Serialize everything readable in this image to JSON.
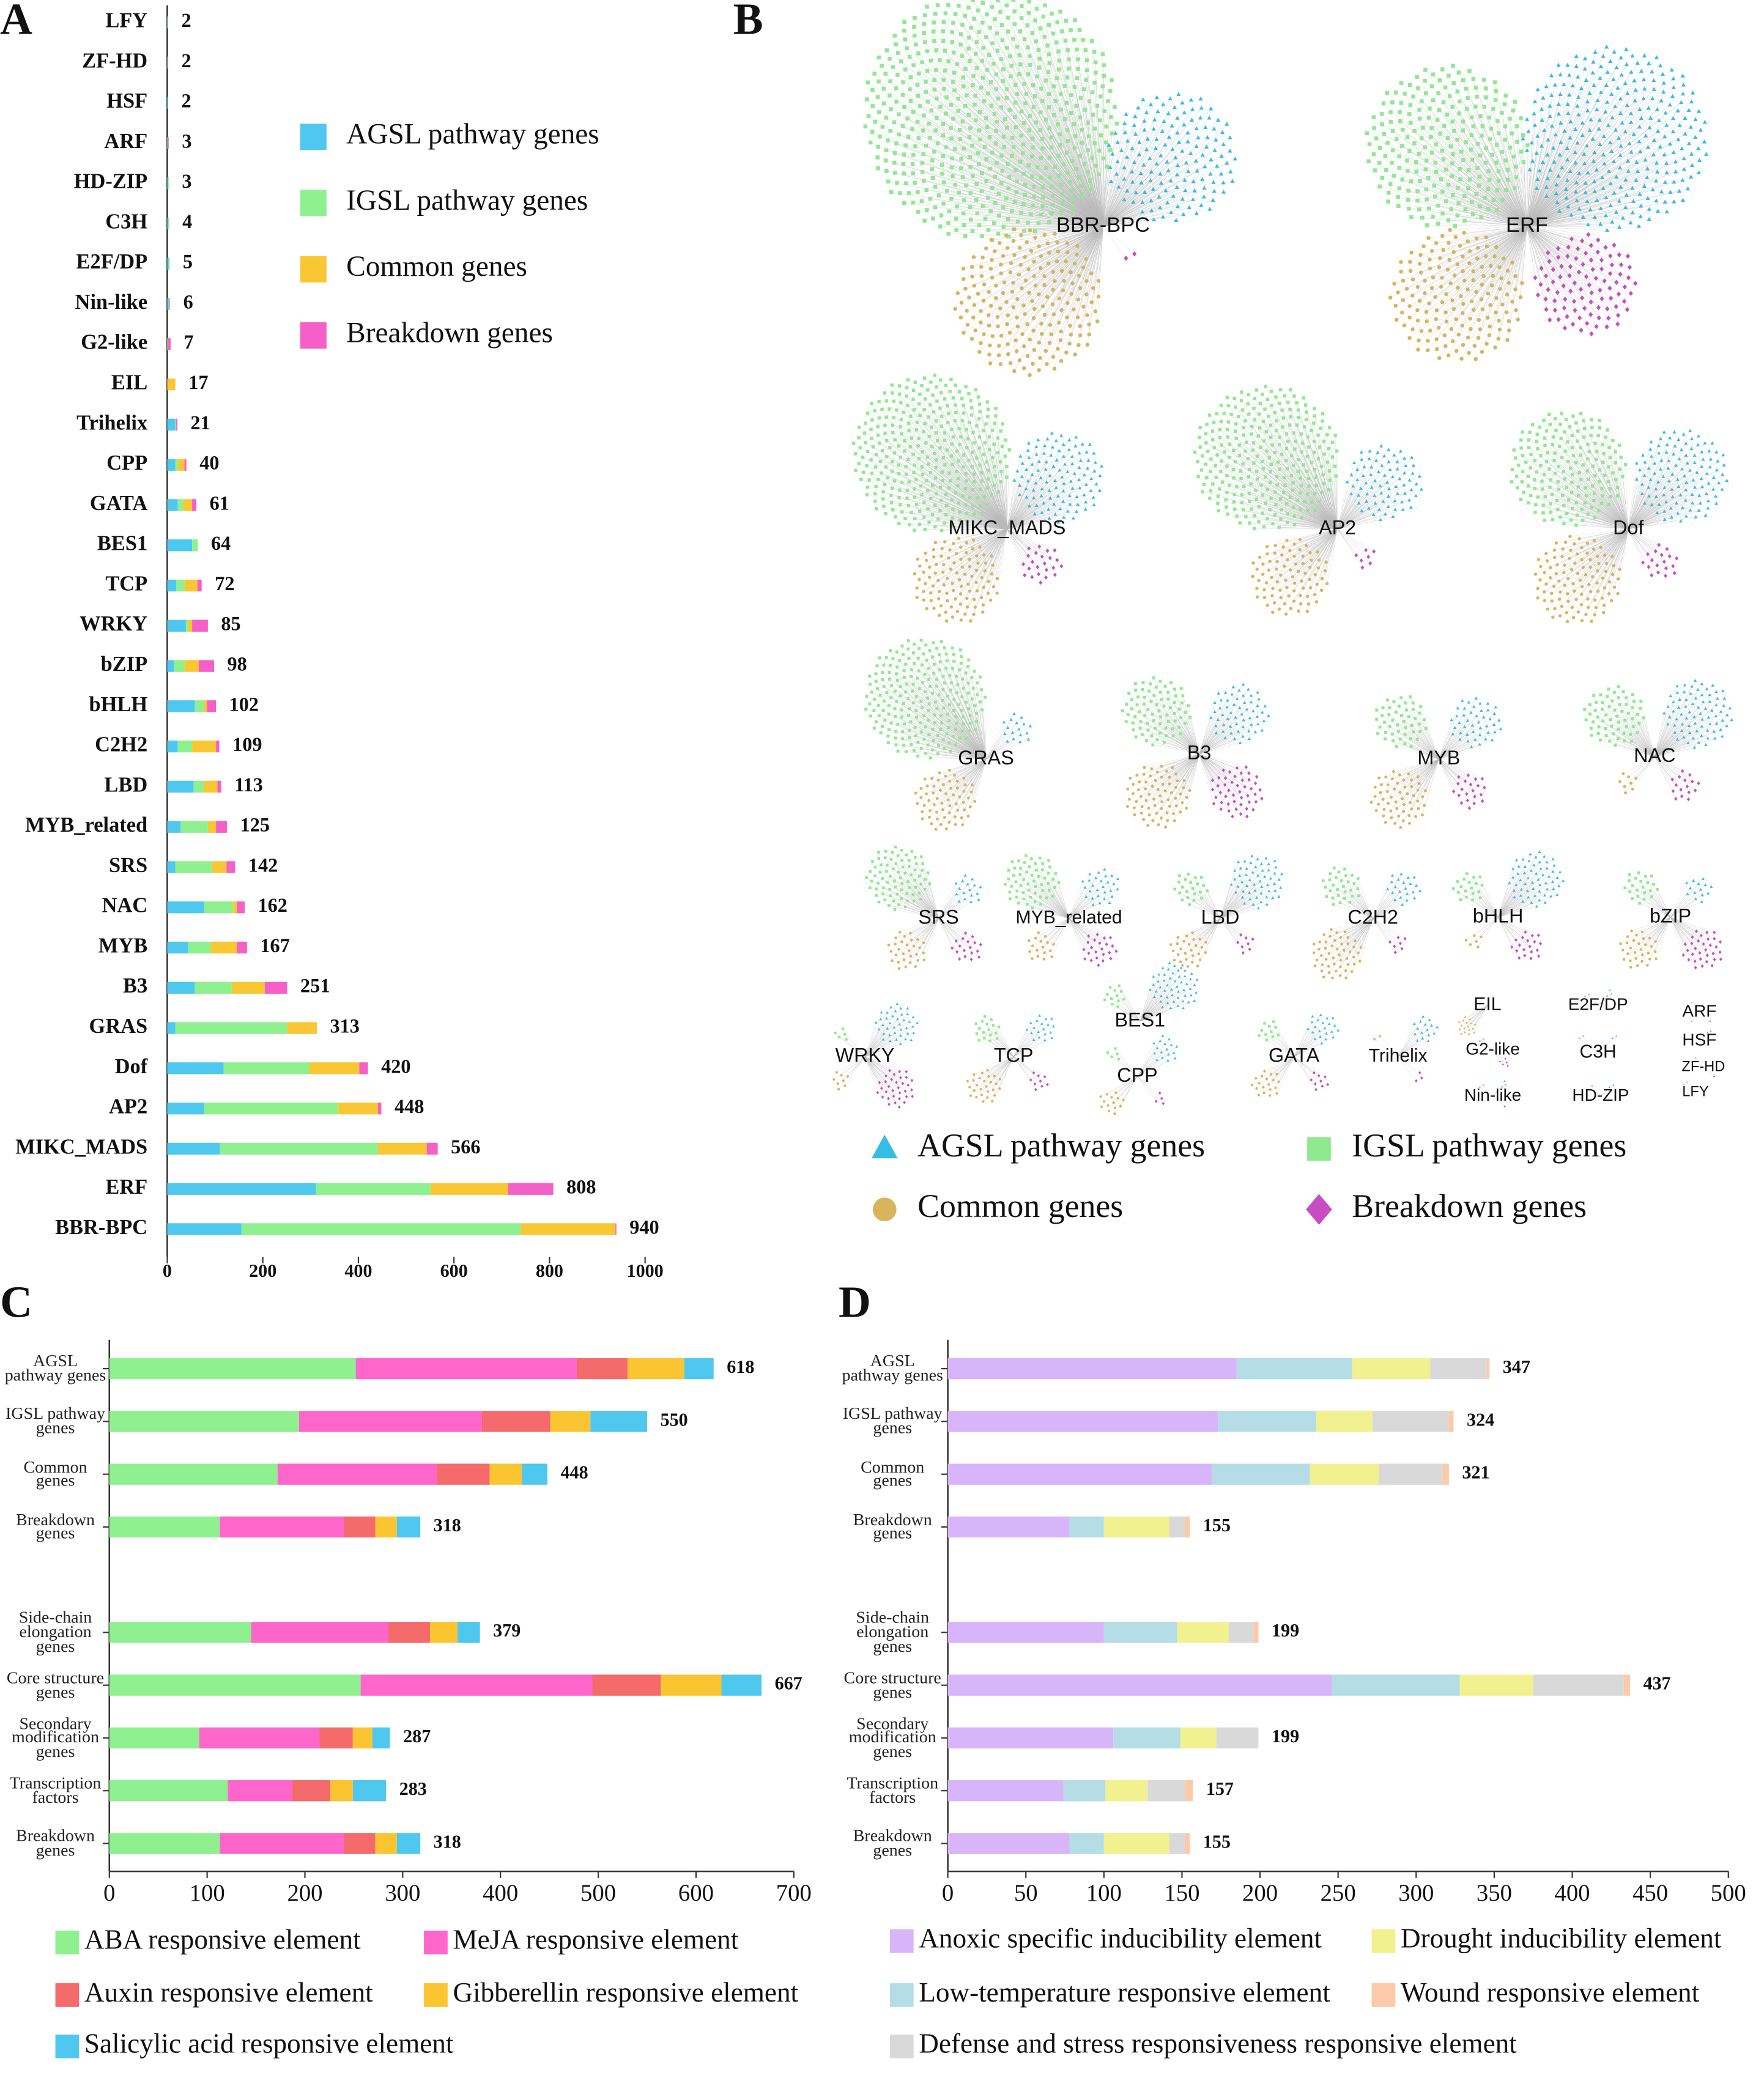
{
  "chart_data": [
    {
      "type": "bar",
      "panel_label": "A",
      "orientation": "horizontal",
      "stacked": true,
      "categories": [
        "LFY",
        "ZF-HD",
        "HSF",
        "ARF",
        "HD-ZIP",
        "C3H",
        "E2F/DP",
        "Nin-like",
        "G2-like",
        "EIL",
        "Trihelix",
        "CPP",
        "GATA",
        "BES1",
        "TCP",
        "WRKY",
        "bZIP",
        "bHLH",
        "C2H2",
        "LBD",
        "MYB_related",
        "SRS",
        "NAC",
        "MYB",
        "B3",
        "GRAS",
        "Dof",
        "AP2",
        "MIKC_MADS",
        "ERF",
        "BBR-BPC"
      ],
      "series": [
        {
          "name": "AGSL pathway genes",
          "color": "#4fc8f0",
          "values": [
            0,
            0,
            2,
            0,
            2,
            2,
            3,
            3,
            0,
            0,
            16,
            17,
            22,
            52,
            19,
            39,
            14,
            58,
            22,
            55,
            28,
            17,
            77,
            44,
            58,
            17,
            118,
            77,
            110,
            311,
            155
          ]
        },
        {
          "name": "IGSL pathway genes",
          "color": "#8ff08f",
          "values": [
            2,
            1,
            0,
            1,
            1,
            2,
            2,
            2,
            2,
            0,
            2,
            5,
            11,
            12,
            17,
            5,
            22,
            19,
            30,
            22,
            57,
            77,
            61,
            47,
            77,
            234,
            179,
            281,
            331,
            240,
            585
          ]
        },
        {
          "name": "Common genes",
          "color": "#fac734",
          "values": [
            0,
            0,
            0,
            1,
            0,
            0,
            0,
            0,
            0,
            17,
            0,
            14,
            19,
            0,
            27,
            8,
            30,
            6,
            50,
            28,
            17,
            30,
            8,
            55,
            69,
            62,
            105,
            83,
            102,
            162,
            198
          ]
        },
        {
          "name": "Breakdown genes",
          "color": "#f55fc8",
          "values": [
            0,
            1,
            0,
            1,
            0,
            0,
            0,
            1,
            5,
            0,
            3,
            4,
            9,
            0,
            9,
            33,
            32,
            19,
            7,
            8,
            23,
            18,
            16,
            21,
            47,
            0,
            18,
            7,
            23,
            95,
            2
          ]
        }
      ],
      "totals": [
        2,
        2,
        2,
        3,
        3,
        4,
        5,
        6,
        7,
        17,
        21,
        40,
        61,
        64,
        72,
        85,
        98,
        102,
        109,
        113,
        125,
        142,
        162,
        167,
        251,
        313,
        420,
        448,
        566,
        808,
        940
      ],
      "xlim": [
        0,
        1000
      ],
      "xticks": [
        0,
        200,
        400,
        600,
        800,
        1000
      ]
    },
    {
      "type": "bar",
      "panel_label": "C",
      "orientation": "horizontal",
      "stacked": true,
      "categories": [
        "AGSL pathway genes",
        "IGSL pathway genes",
        "Common genes",
        "Breakdown genes",
        "Side-chain elongation genes",
        "Core structure genes",
        "Secondary modification genes",
        "Transcription factors",
        "Breakdown genes"
      ],
      "series": [
        {
          "name": "ABA responsive element",
          "color": "#8ff08f",
          "values": [
            252,
            194,
            172,
            113,
            145,
            257,
            92,
            121,
            113
          ]
        },
        {
          "name": "MeJA responsive element",
          "color": "#ff66cc",
          "values": [
            226,
            187,
            163,
            127,
            140,
            237,
            123,
            66,
            127
          ]
        },
        {
          "name": "Auxin responsive element",
          "color": "#f56a6a",
          "values": [
            52,
            70,
            54,
            32,
            43,
            70,
            34,
            39,
            32
          ]
        },
        {
          "name": "Gibberellin responsive element",
          "color": "#fbc531",
          "values": [
            58,
            41,
            33,
            22,
            28,
            62,
            20,
            23,
            22
          ]
        },
        {
          "name": "Salicylic acid responsive element",
          "color": "#4fc8f0",
          "values": [
            30,
            58,
            26,
            24,
            23,
            41,
            18,
            34,
            24
          ]
        }
      ],
      "totals": [
        618,
        550,
        448,
        318,
        379,
        667,
        287,
        283,
        318
      ],
      "xlim": [
        0,
        700
      ],
      "xticks": [
        0,
        100,
        200,
        300,
        400,
        500,
        600,
        700
      ]
    },
    {
      "type": "bar",
      "panel_label": "D",
      "orientation": "horizontal",
      "stacked": true,
      "categories": [
        "AGSL pathway genes",
        "IGSL pathway genes",
        "Common genes",
        "Breakdown genes",
        "Side-chain elongation genes",
        "Core structure genes",
        "Secondary modification genes",
        "Transcription factors",
        "Breakdown genes"
      ],
      "series": [
        {
          "name": "Anoxic specific inducibility element",
          "color": "#d8b4f8",
          "values": [
            185,
            173,
            169,
            78,
            100,
            246,
            106,
            74,
            78
          ]
        },
        {
          "name": "Low-temperature responsive element",
          "color": "#b4dde6",
          "values": [
            74,
            63,
            63,
            22,
            47,
            82,
            43,
            27,
            22
          ]
        },
        {
          "name": "Drought inducibility element",
          "color": "#f1f190",
          "values": [
            50,
            36,
            44,
            42,
            33,
            47,
            23,
            27,
            42
          ]
        },
        {
          "name": "Defense and stress responsiveness responsive element",
          "color": "#d9d9d9",
          "values": [
            36,
            49,
            41,
            10,
            16,
            58,
            27,
            24,
            10
          ]
        },
        {
          "name": "Wound responsive element",
          "color": "#fccaa8",
          "values": [
            2,
            3,
            4,
            3,
            3,
            4,
            0,
            5,
            3
          ]
        }
      ],
      "totals": [
        347,
        324,
        321,
        155,
        199,
        437,
        199,
        157,
        155
      ],
      "xlim": [
        0,
        500
      ],
      "xticks": [
        0,
        50,
        100,
        150,
        200,
        250,
        300,
        350,
        400,
        450,
        500
      ]
    }
  ],
  "network": {
    "panel_label": "B",
    "node_colors": [
      "#35bde3",
      "#8fe98f",
      "#d8b55c",
      "#c94dc2"
    ]
  }
}
